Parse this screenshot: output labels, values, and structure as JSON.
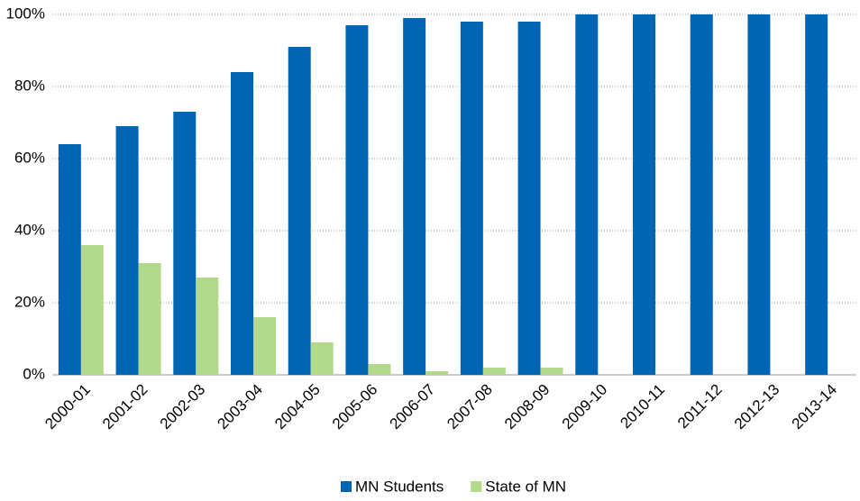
{
  "chart_data": {
    "type": "bar",
    "categories": [
      "2000-01",
      "2001-02",
      "2002-03",
      "2003-04",
      "2004-05",
      "2005-06",
      "2006-07",
      "2007-08",
      "2008-09",
      "2009-10",
      "2010-11",
      "2011-12",
      "2012-13",
      "2013-14"
    ],
    "series": [
      {
        "name": "MN Students",
        "color": "#0066b3",
        "values": [
          64,
          69,
          73,
          84,
          91,
          97,
          99,
          98,
          98,
          100,
          100,
          100,
          100,
          100
        ]
      },
      {
        "name": "State of MN",
        "color": "#b3d98c",
        "values": [
          36,
          31,
          27,
          16,
          9,
          3,
          1,
          2,
          2,
          0,
          0,
          0,
          0,
          0
        ]
      }
    ],
    "ylim": [
      0,
      100
    ],
    "yticks": [
      {
        "value": 0,
        "label": "0%"
      },
      {
        "value": 20,
        "label": "20%"
      },
      {
        "value": 40,
        "label": "40%"
      },
      {
        "value": 60,
        "label": "60%"
      },
      {
        "value": 80,
        "label": "80%"
      },
      {
        "value": 100,
        "label": "100%"
      }
    ],
    "grid": true,
    "legend": "bottom"
  }
}
